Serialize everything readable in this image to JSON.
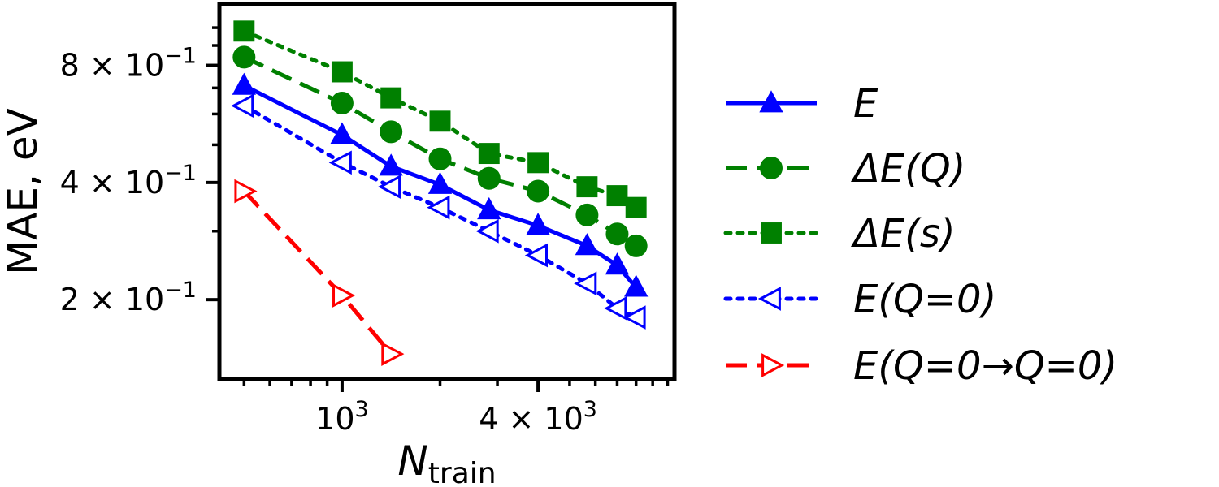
{
  "chart_data": {
    "type": "line",
    "xlabel": {
      "main": "N",
      "sub": "train"
    },
    "ylabel": "MAE, eV",
    "xscale": "log",
    "yscale": "log",
    "xlim": [
      420,
      10500
    ],
    "ylim": [
      0.125,
      1.15
    ],
    "grid": false,
    "legend_position": "right, outside plot",
    "x_ticks": [
      {
        "value": 1000,
        "label": "10",
        "sup": "3"
      },
      {
        "value": 4000,
        "label": "4 × 10",
        "sup": "3"
      }
    ],
    "y_ticks": [
      {
        "value": 0.2,
        "label": "2 × 10",
        "sup": "−1"
      },
      {
        "value": 0.4,
        "label": "4 × 10",
        "sup": "−1"
      },
      {
        "value": 0.8,
        "label": "8 × 10",
        "sup": "−1"
      }
    ],
    "series": [
      {
        "name": "E",
        "color": "#0000ff",
        "linestyle": "solid",
        "marker": "triangle-up-filled",
        "x": [
          500,
          1000,
          1414,
          2000,
          2828,
          4000,
          5657,
          7000,
          8000
        ],
        "y": [
          0.71,
          0.53,
          0.44,
          0.395,
          0.34,
          0.31,
          0.275,
          0.245,
          0.215
        ]
      },
      {
        "name": "ΔE(Q)",
        "color": "#008000",
        "linestyle": "dashed",
        "marker": "circle-filled",
        "x": [
          500,
          1000,
          1414,
          2000,
          2828,
          4000,
          5657,
          7000,
          8000
        ],
        "y": [
          0.84,
          0.64,
          0.54,
          0.46,
          0.41,
          0.38,
          0.33,
          0.295,
          0.275
        ]
      },
      {
        "name": "ΔE(s)",
        "color": "#008000",
        "linestyle": "dotted",
        "marker": "square-filled",
        "x": [
          500,
          1000,
          1414,
          2000,
          2828,
          4000,
          5657,
          7000,
          8000
        ],
        "y": [
          0.98,
          0.77,
          0.66,
          0.575,
          0.475,
          0.45,
          0.39,
          0.37,
          0.345
        ]
      },
      {
        "name": "E(Q=0)",
        "color": "#0000ff",
        "linestyle": "dotted",
        "marker": "triangle-left-open",
        "x": [
          500,
          1000,
          1414,
          2000,
          2828,
          4000,
          5657,
          7000,
          8000
        ],
        "y": [
          0.63,
          0.45,
          0.39,
          0.345,
          0.3,
          0.26,
          0.22,
          0.19,
          0.18
        ]
      },
      {
        "name": "E(Q=0→Q=0)",
        "color": "#ff0000",
        "linestyle": "dashed",
        "marker": "triangle-right-open",
        "x": [
          500,
          1000,
          1414
        ],
        "y": [
          0.38,
          0.205,
          0.145
        ]
      }
    ]
  }
}
